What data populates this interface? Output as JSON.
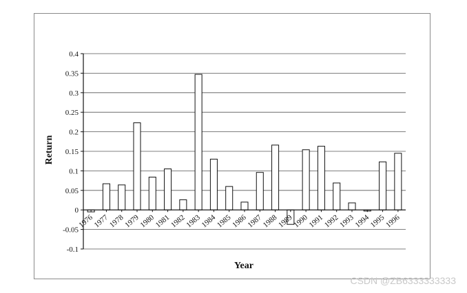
{
  "chart_data": {
    "type": "bar",
    "title": "",
    "xlabel": "Year",
    "ylabel": "Return",
    "ylim": [
      -0.1,
      0.4
    ],
    "yticks": [
      "0.4",
      "0.35",
      "0.3",
      "0.25",
      "0.2",
      "0.15",
      "0.1",
      "0.05",
      "0",
      "-0.05",
      "-0.1"
    ],
    "categories": [
      "1976",
      "1977",
      "1978",
      "1979",
      "1980",
      "1981",
      "1982",
      "1983",
      "1984",
      "1985",
      "1986",
      "1987",
      "1988",
      "1989",
      "1990",
      "1991",
      "1992",
      "1993",
      "1994",
      "1995",
      "1996"
    ],
    "values": [
      -0.005,
      0.067,
      0.064,
      0.223,
      0.084,
      0.105,
      0.026,
      0.347,
      0.13,
      0.06,
      0.02,
      0.096,
      0.166,
      -0.037,
      0.154,
      0.163,
      0.069,
      0.018,
      -0.003,
      0.123,
      0.145
    ],
    "grid": true,
    "bar_color": "#ffffff",
    "bar_edge_color": "#111111"
  },
  "watermark": "CSDN @ZB6333333333"
}
